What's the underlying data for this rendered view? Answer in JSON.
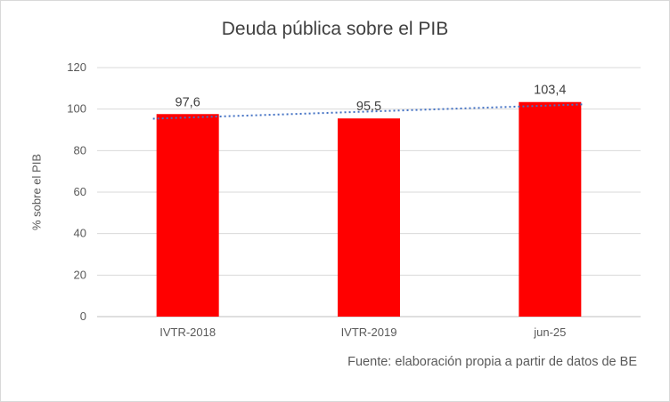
{
  "chart_data": {
    "type": "bar",
    "title": "Deuda pública sobre el PIB",
    "categories": [
      "IVTR-2018",
      "IVTR-2019",
      "jun-25"
    ],
    "values": [
      97.6,
      95.5,
      103.4
    ],
    "value_labels": [
      "97,6",
      "95,5",
      "103,4"
    ],
    "xlabel": "",
    "ylabel": "% sobre el PIB",
    "ylim": [
      0,
      120
    ],
    "ytick_step": 20,
    "ytick_labels": [
      "0",
      "20",
      "40",
      "60",
      "80",
      "100",
      "120"
    ],
    "grid": true,
    "legend": "none",
    "source_note": "Fuente: elaboración propia a partir de datos de BE",
    "bar_color": "#ff0000",
    "trendline": {
      "type": "linear",
      "style": "dotted",
      "color": "#4472c4"
    },
    "colors": {
      "title_text": "#404040",
      "axis_text": "#595959",
      "data_label_text": "#404040",
      "gridline": "#d9d9d9",
      "axis_line": "#bfbfbf",
      "frame_border": "#d9d9d9",
      "background": "#ffffff"
    }
  }
}
